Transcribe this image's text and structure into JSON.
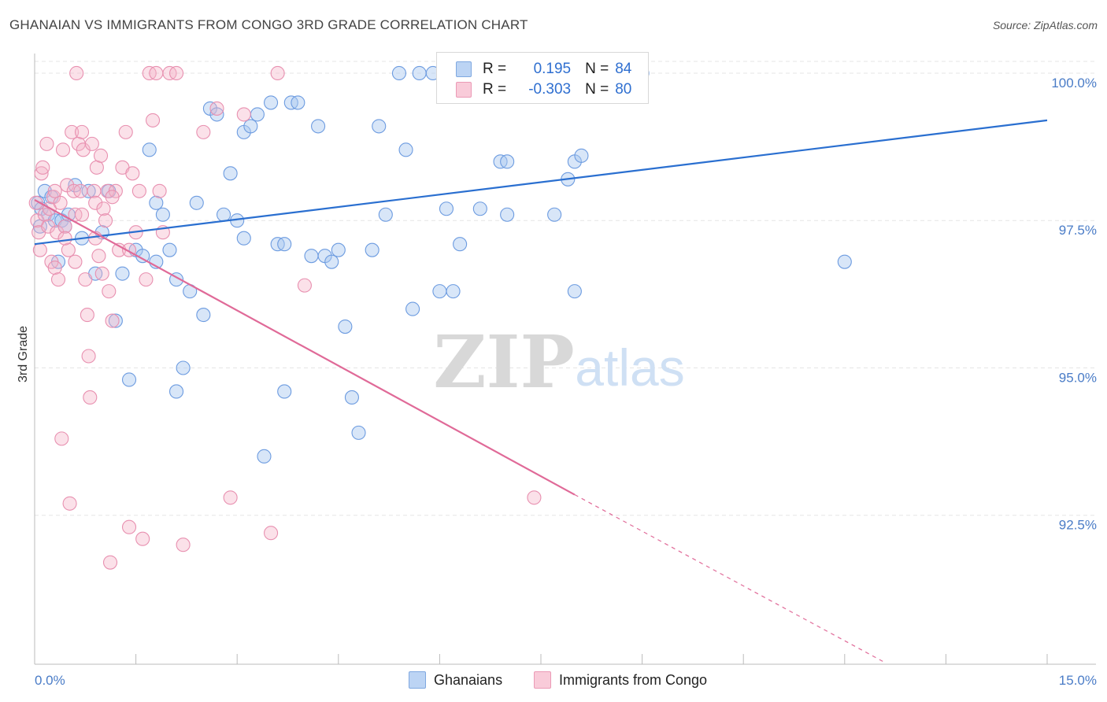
{
  "title": "GHANAIAN VS IMMIGRANTS FROM CONGO 3RD GRADE CORRELATION CHART",
  "source": "Source: ZipAtlas.com",
  "watermark": {
    "zip": "ZIP",
    "atlas": "atlas"
  },
  "legend_top": {
    "rows": [
      {
        "r_label": "R =",
        "r_value": "0.195",
        "n_label": "N =",
        "n_value": "84",
        "color": "#a9c8f0"
      },
      {
        "r_label": "R =",
        "r_value": "-0.303",
        "n_label": "N =",
        "n_value": "80",
        "color": "#f5b3c8"
      }
    ]
  },
  "legend_bottom": [
    {
      "label": "Ghanaians",
      "color": "#a9c8f0"
    },
    {
      "label": "Immigrants from Congo",
      "color": "#f5b3c8"
    }
  ],
  "colors": {
    "blue": "#5b8fd8",
    "blue_line": "#2a6fd0",
    "pink": "#e88aab",
    "pink_line": "#e06a98",
    "grid": "#e5e5e5",
    "tick_text": "#4a7cc7"
  },
  "chart_data": {
    "type": "scatter",
    "xlabel": "",
    "ylabel": "3rd Grade",
    "xlim": [
      0.0,
      15.0
    ],
    "ylim": [
      90.0,
      100.2
    ],
    "x_tick_labels": [
      "0.0%",
      "15.0%"
    ],
    "y_ticks": [
      {
        "value": 100.0,
        "label": "100.0%"
      },
      {
        "value": 97.5,
        "label": "97.5%"
      },
      {
        "value": 95.0,
        "label": "95.0%"
      },
      {
        "value": 92.5,
        "label": "92.5%"
      }
    ],
    "grid": true,
    "legend_position": "top-center",
    "series": [
      {
        "name": "Ghanaians",
        "color": "#5b8fd8",
        "points": [
          [
            0.05,
            97.8
          ],
          [
            0.1,
            97.7
          ],
          [
            0.15,
            98.0
          ],
          [
            0.2,
            97.6
          ],
          [
            0.25,
            97.9
          ],
          [
            0.3,
            97.5
          ],
          [
            0.35,
            96.8
          ],
          [
            0.4,
            97.5
          ],
          [
            0.45,
            97.4
          ],
          [
            0.5,
            97.6
          ],
          [
            0.6,
            98.1
          ],
          [
            0.7,
            97.2
          ],
          [
            0.8,
            98.0
          ],
          [
            0.9,
            96.6
          ],
          [
            1.0,
            97.3
          ],
          [
            1.1,
            98.0
          ],
          [
            1.2,
            95.8
          ],
          [
            1.3,
            96.6
          ],
          [
            1.4,
            94.8
          ],
          [
            1.5,
            97.0
          ],
          [
            1.6,
            96.9
          ],
          [
            1.7,
            98.7
          ],
          [
            1.8,
            97.8
          ],
          [
            1.9,
            97.6
          ],
          [
            2.0,
            97.0
          ],
          [
            2.1,
            96.5
          ],
          [
            2.1,
            94.6
          ],
          [
            2.2,
            95.0
          ],
          [
            2.3,
            96.3
          ],
          [
            2.4,
            97.8
          ],
          [
            2.5,
            95.9
          ],
          [
            2.6,
            99.4
          ],
          [
            2.7,
            99.3
          ],
          [
            2.8,
            97.6
          ],
          [
            2.9,
            98.3
          ],
          [
            3.0,
            97.5
          ],
          [
            3.1,
            99.0
          ],
          [
            3.1,
            97.2
          ],
          [
            3.2,
            99.1
          ],
          [
            3.3,
            99.3
          ],
          [
            3.4,
            93.5
          ],
          [
            3.5,
            99.5
          ],
          [
            3.6,
            97.1
          ],
          [
            3.7,
            94.6
          ],
          [
            3.8,
            99.5
          ],
          [
            3.9,
            99.5
          ],
          [
            4.1,
            96.9
          ],
          [
            4.2,
            99.1
          ],
          [
            4.3,
            96.9
          ],
          [
            4.4,
            96.8
          ],
          [
            4.5,
            97.0
          ],
          [
            4.6,
            95.7
          ],
          [
            4.7,
            94.5
          ],
          [
            4.8,
            93.9
          ],
          [
            5.0,
            97.0
          ],
          [
            5.1,
            99.1
          ],
          [
            5.2,
            97.6
          ],
          [
            5.4,
            100.0
          ],
          [
            5.5,
            98.7
          ],
          [
            5.6,
            96.0
          ],
          [
            5.7,
            100.0
          ],
          [
            5.9,
            100.0
          ],
          [
            6.0,
            96.3
          ],
          [
            6.1,
            97.7
          ],
          [
            6.2,
            96.3
          ],
          [
            6.3,
            97.1
          ],
          [
            6.5,
            100.0
          ],
          [
            6.6,
            100.0
          ],
          [
            6.9,
            98.5
          ],
          [
            7.0,
            98.5
          ],
          [
            7.0,
            97.6
          ],
          [
            7.5,
            99.7
          ],
          [
            7.7,
            97.6
          ],
          [
            7.9,
            98.2
          ],
          [
            8.0,
            98.5
          ],
          [
            8.0,
            96.3
          ],
          [
            8.1,
            98.6
          ],
          [
            8.8,
            100.0
          ],
          [
            9.0,
            100.0
          ],
          [
            12.0,
            96.8
          ],
          [
            0.08,
            97.4
          ],
          [
            1.8,
            96.8
          ],
          [
            3.7,
            97.1
          ],
          [
            6.6,
            97.7
          ]
        ]
      },
      {
        "name": "Immigrants from Congo",
        "color": "#e88aab",
        "points": [
          [
            0.02,
            97.8
          ],
          [
            0.04,
            97.5
          ],
          [
            0.06,
            97.3
          ],
          [
            0.08,
            97.0
          ],
          [
            0.1,
            98.3
          ],
          [
            0.12,
            98.4
          ],
          [
            0.15,
            97.6
          ],
          [
            0.18,
            98.8
          ],
          [
            0.2,
            97.4
          ],
          [
            0.22,
            97.7
          ],
          [
            0.25,
            96.8
          ],
          [
            0.28,
            97.9
          ],
          [
            0.3,
            96.7
          ],
          [
            0.33,
            97.3
          ],
          [
            0.35,
            96.5
          ],
          [
            0.38,
            97.8
          ],
          [
            0.4,
            93.8
          ],
          [
            0.42,
            98.7
          ],
          [
            0.45,
            97.4
          ],
          [
            0.48,
            98.1
          ],
          [
            0.5,
            97.0
          ],
          [
            0.52,
            92.7
          ],
          [
            0.55,
            99.0
          ],
          [
            0.58,
            98.0
          ],
          [
            0.6,
            97.6
          ],
          [
            0.62,
            100.0
          ],
          [
            0.65,
            98.8
          ],
          [
            0.68,
            98.0
          ],
          [
            0.7,
            99.0
          ],
          [
            0.72,
            98.7
          ],
          [
            0.75,
            96.5
          ],
          [
            0.78,
            95.9
          ],
          [
            0.8,
            95.2
          ],
          [
            0.82,
            94.5
          ],
          [
            0.85,
            98.8
          ],
          [
            0.88,
            98.0
          ],
          [
            0.9,
            97.8
          ],
          [
            0.92,
            98.4
          ],
          [
            0.95,
            96.9
          ],
          [
            0.98,
            98.6
          ],
          [
            1.0,
            96.6
          ],
          [
            1.02,
            97.7
          ],
          [
            1.05,
            97.5
          ],
          [
            1.08,
            98.0
          ],
          [
            1.1,
            96.3
          ],
          [
            1.12,
            91.7
          ],
          [
            1.15,
            95.8
          ],
          [
            1.2,
            98.0
          ],
          [
            1.25,
            97.0
          ],
          [
            1.3,
            98.4
          ],
          [
            1.35,
            99.0
          ],
          [
            1.4,
            92.3
          ],
          [
            1.45,
            98.3
          ],
          [
            1.5,
            97.3
          ],
          [
            1.55,
            98.0
          ],
          [
            1.6,
            92.1
          ],
          [
            1.65,
            96.5
          ],
          [
            1.7,
            100.0
          ],
          [
            1.75,
            99.2
          ],
          [
            1.8,
            100.0
          ],
          [
            1.85,
            98.0
          ],
          [
            1.9,
            97.3
          ],
          [
            2.0,
            100.0
          ],
          [
            2.1,
            100.0
          ],
          [
            2.2,
            92.0
          ],
          [
            2.5,
            99.0
          ],
          [
            2.7,
            99.4
          ],
          [
            2.9,
            92.8
          ],
          [
            3.1,
            99.3
          ],
          [
            3.5,
            92.2
          ],
          [
            3.6,
            100.0
          ],
          [
            4.0,
            96.4
          ],
          [
            7.4,
            92.8
          ],
          [
            0.3,
            98.0
          ],
          [
            0.45,
            97.2
          ],
          [
            0.6,
            96.8
          ],
          [
            0.7,
            97.6
          ],
          [
            0.9,
            97.2
          ],
          [
            1.15,
            97.9
          ],
          [
            1.4,
            97.0
          ]
        ]
      }
    ],
    "trendlines": [
      {
        "series": "Ghanaians",
        "x_start": 0.0,
        "y_start": 97.1,
        "x_end": 15.0,
        "y_end": 99.2
      },
      {
        "series": "Immigrants from Congo",
        "x_start": 0.0,
        "y_start": 97.85,
        "x_end": 8.0,
        "y_end": 92.85,
        "dashed_to_x": 12.6,
        "dashed_to_y": 90.0
      }
    ]
  }
}
